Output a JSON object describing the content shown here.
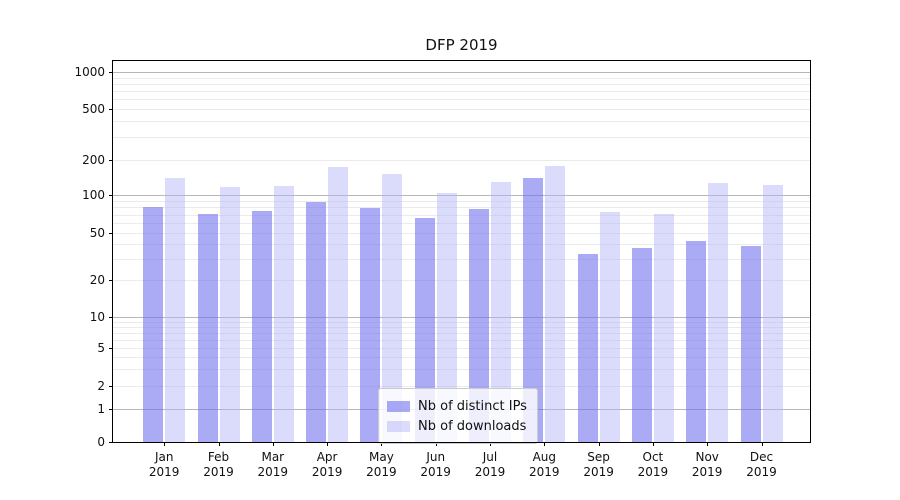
{
  "title": "DFP 2019",
  "chart_data": {
    "type": "bar",
    "title": "DFP 2019",
    "categories": [
      "Jan",
      "Feb",
      "Mar",
      "Apr",
      "May",
      "Jun",
      "Jul",
      "Aug",
      "Sep",
      "Oct",
      "Nov",
      "Dec"
    ],
    "year_label": "2019",
    "series": [
      {
        "name": "Nb of distinct IPs",
        "values": [
          80,
          71,
          75,
          88,
          79,
          66,
          78,
          141,
          33,
          37,
          43,
          39
        ]
      },
      {
        "name": "Nb of downloads",
        "values": [
          141,
          117,
          119,
          176,
          152,
          105,
          130,
          179,
          73,
          71,
          128,
          123
        ]
      }
    ],
    "yscale": "symlog",
    "ylim": [
      0,
      1230
    ],
    "y_tick_labels": [
      "1000",
      "500",
      "200",
      "100",
      "50",
      "20",
      "10",
      "5",
      "2",
      "1",
      "0"
    ],
    "y_tick_values": [
      1000,
      500,
      200,
      100,
      50,
      20,
      10,
      5,
      2,
      1,
      0
    ],
    "grid": "horizontal major+minor",
    "legend_position": "lower-center"
  },
  "legend": {
    "items": [
      {
        "label": "Nb of distinct IPs",
        "color": "rgba(108,108,238,0.58)"
      },
      {
        "label": "Nb of downloads",
        "color": "rgba(178,178,248,0.47)"
      }
    ]
  },
  "colors": {
    "series1_fill": "rgba(108,108,238,0.58)",
    "series2_fill": "rgba(178,178,248,0.47)",
    "major_grid": "#b7b7b7",
    "minor_grid": "#ebebeb",
    "axis": "#000000",
    "text": "#111111",
    "legend_bg": "rgba(255,255,255,0.8)",
    "legend_border": "#cccccc"
  }
}
